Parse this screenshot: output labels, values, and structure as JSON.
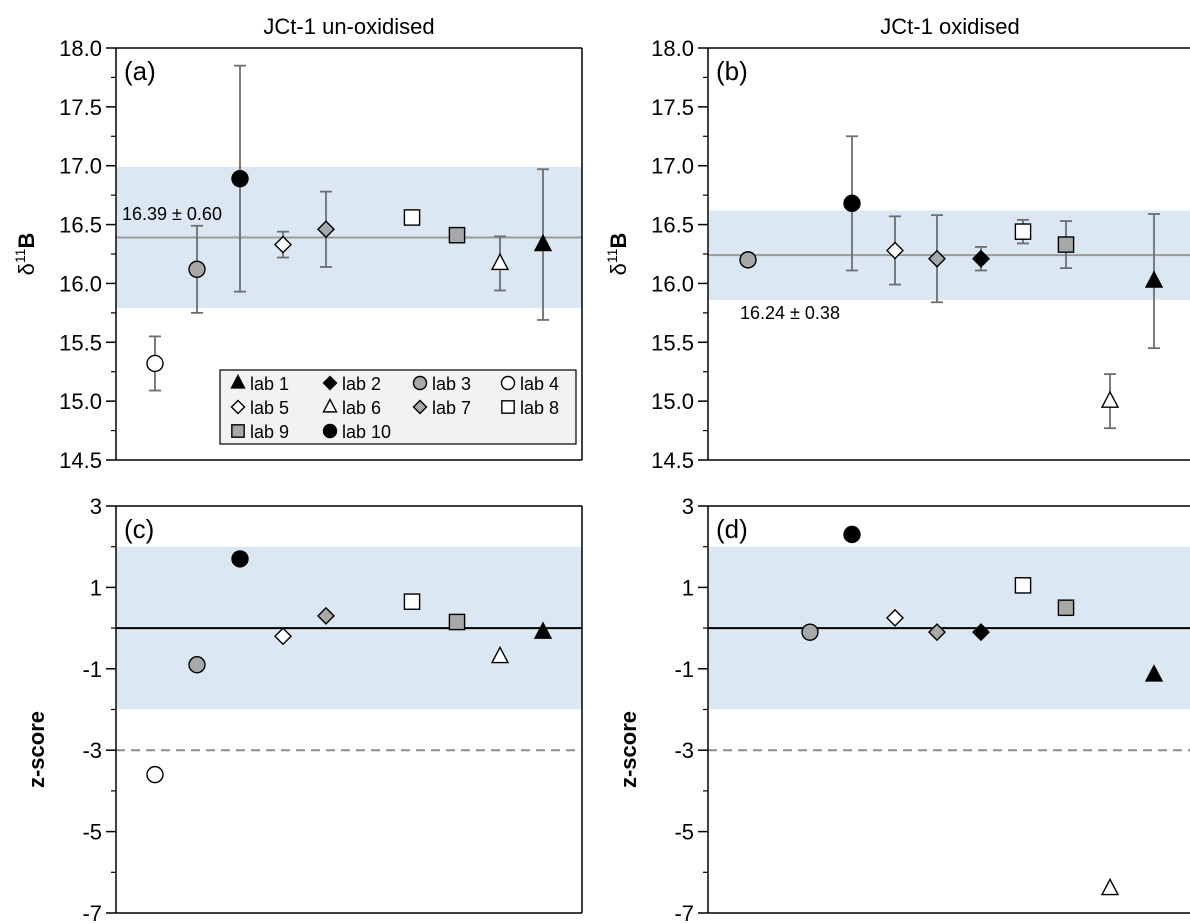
{
  "colors": {
    "band": "#dbe8f4",
    "refline": "#9a9a9a",
    "errorbar": "#6e6e6e",
    "gray_marker": "#a8a8a8",
    "dashed": "#8c8c8c",
    "legend_bg": "#f2f2f2"
  },
  "titles": {
    "left": "JCt-1 un-oxidised",
    "right": "JCt-1 oxidised"
  },
  "panel_labels": [
    "(a)",
    "(b)",
    "(c)",
    "(d)"
  ],
  "axis_labels": {
    "delta_main": "δ",
    "delta_sup": "11",
    "delta_tail": "B",
    "z": "z-score"
  },
  "legend": [
    {
      "marker": "triangle-filled",
      "label": "lab 1"
    },
    {
      "marker": "diamond-filled",
      "label": "lab 2"
    },
    {
      "marker": "circle-gray",
      "label": "lab 3"
    },
    {
      "marker": "circle-open",
      "label": "lab 4"
    },
    {
      "marker": "diamond-open",
      "label": "lab 5"
    },
    {
      "marker": "triangle-open",
      "label": "lab 6"
    },
    {
      "marker": "diamond-gray",
      "label": "lab 7"
    },
    {
      "marker": "square-open",
      "label": "lab 8"
    },
    {
      "marker": "square-gray",
      "label": "lab 9"
    },
    {
      "marker": "circle-filled",
      "label": "lab 10"
    }
  ],
  "chart_data": [
    {
      "type": "scatter",
      "panel": "(a)",
      "title": "JCt-1 un-oxidised",
      "ylabel": "δ11B",
      "ylim": [
        14.5,
        18.0
      ],
      "yticks": [
        "14.5",
        "15.0",
        "15.5",
        "16.0",
        "16.5",
        "17.0",
        "17.5",
        "18.0"
      ],
      "reference": {
        "value": 16.39,
        "uncertainty": 0.6,
        "label": "16.39 ± 0.60"
      },
      "points": [
        {
          "lab": "lab 4",
          "x": 1,
          "y": 15.32,
          "err": 0.23
        },
        {
          "lab": "lab 3",
          "x": 2,
          "y": 16.12,
          "err": 0.37
        },
        {
          "lab": "lab 10",
          "x": 3,
          "y": 16.89,
          "err": 0.96
        },
        {
          "lab": "lab 5",
          "x": 4,
          "y": 16.33,
          "err": 0.11
        },
        {
          "lab": "lab 7",
          "x": 5,
          "y": 16.46,
          "err": 0.32
        },
        {
          "lab": "lab 8",
          "x": 6,
          "y": 16.56,
          "err": 0
        },
        {
          "lab": "lab 9",
          "x": 7,
          "y": 16.41,
          "err": 0.05
        },
        {
          "lab": "lab 6",
          "x": 8,
          "y": 16.17,
          "err": 0.23
        },
        {
          "lab": "lab 1",
          "x": 9,
          "y": 16.33,
          "err": 0.64
        }
      ]
    },
    {
      "type": "scatter",
      "panel": "(b)",
      "title": "JCt-1 oxidised",
      "ylabel": "δ11B",
      "ylim": [
        14.5,
        18.0
      ],
      "yticks": [
        "14.5",
        "15.0",
        "15.5",
        "16.0",
        "16.5",
        "17.0",
        "17.5",
        "18.0"
      ],
      "reference": {
        "value": 16.24,
        "uncertainty": 0.38,
        "label": "16.24 ± 0.38"
      },
      "points": [
        {
          "lab": "lab 3",
          "x": 1,
          "y": 16.2,
          "err": 0
        },
        {
          "lab": "lab 10",
          "x": 2,
          "y": 16.68,
          "err": 0.57
        },
        {
          "lab": "lab 5",
          "x": 3,
          "y": 16.28,
          "err": 0.29
        },
        {
          "lab": "lab 7",
          "x": 4,
          "y": 16.21,
          "err": 0.37
        },
        {
          "lab": "lab 2",
          "x": 5,
          "y": 16.21,
          "err": 0.1
        },
        {
          "lab": "lab 8",
          "x": 6,
          "y": 16.44,
          "err": 0.1
        },
        {
          "lab": "lab 9",
          "x": 7,
          "y": 16.33,
          "err": 0.2
        },
        {
          "lab": "lab 6",
          "x": 8,
          "y": 15.0,
          "err": 0.23
        },
        {
          "lab": "lab 1",
          "x": 9,
          "y": 16.02,
          "err": 0.57
        }
      ]
    },
    {
      "type": "scatter",
      "panel": "(c)",
      "ylabel": "z-score",
      "ylim": [
        -7,
        3
      ],
      "yticks": [
        "-7",
        "-5",
        "-3",
        "-1",
        "1",
        "3"
      ],
      "band": [
        -2,
        2
      ],
      "reference": {
        "value": 0
      },
      "dashed_line": -3,
      "points": [
        {
          "lab": "lab 4",
          "x": 1,
          "y": -3.6
        },
        {
          "lab": "lab 3",
          "x": 2,
          "y": -0.9
        },
        {
          "lab": "lab 10",
          "x": 3,
          "y": 1.7
        },
        {
          "lab": "lab 5",
          "x": 4,
          "y": -0.2
        },
        {
          "lab": "lab 7",
          "x": 5,
          "y": 0.3
        },
        {
          "lab": "lab 8",
          "x": 6,
          "y": 0.65
        },
        {
          "lab": "lab 9",
          "x": 7,
          "y": 0.15
        },
        {
          "lab": "lab 6",
          "x": 8,
          "y": -0.7
        },
        {
          "lab": "lab 1",
          "x": 9,
          "y": -0.1
        }
      ]
    },
    {
      "type": "scatter",
      "panel": "(d)",
      "ylabel": "z-score",
      "ylim": [
        -7,
        3
      ],
      "yticks": [
        "-7",
        "-5",
        "-3",
        "-1",
        "1",
        "3"
      ],
      "band": [
        -2,
        2
      ],
      "reference": {
        "value": 0
      },
      "dashed_line": -3,
      "points": [
        {
          "lab": "lab 3",
          "x": 1,
          "y": -0.1
        },
        {
          "lab": "lab 10",
          "x": 2,
          "y": 2.3
        },
        {
          "lab": "lab 5",
          "x": 3,
          "y": 0.25
        },
        {
          "lab": "lab 7",
          "x": 4,
          "y": -0.1
        },
        {
          "lab": "lab 2",
          "x": 5,
          "y": -0.1
        },
        {
          "lab": "lab 8",
          "x": 6,
          "y": 1.05
        },
        {
          "lab": "lab 9",
          "x": 7,
          "y": 0.5
        },
        {
          "lab": "lab 6",
          "x": 8,
          "y": -6.4
        },
        {
          "lab": "lab 1",
          "x": 9,
          "y": -1.15
        }
      ]
    }
  ]
}
